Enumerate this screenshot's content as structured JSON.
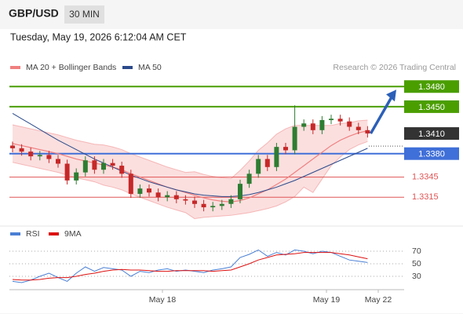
{
  "header": {
    "symbol": "GBP/USD",
    "timeframe": "30 MIN",
    "timestamp": "Tuesday, May 19, 2026 6:12:04 AM CET",
    "credit": "Research © 2026 Trading Central"
  },
  "chart_data": [
    {
      "type": "candlestick",
      "candles": [
        [
          1.3392,
          1.3398,
          1.3382,
          1.3388
        ],
        [
          1.3388,
          1.3394,
          1.3377,
          1.3383
        ],
        [
          1.3383,
          1.3389,
          1.337,
          1.3376
        ],
        [
          1.3376,
          1.3384,
          1.337,
          1.3378
        ],
        [
          1.3378,
          1.3384,
          1.3366,
          1.3372
        ],
        [
          1.3372,
          1.3378,
          1.3359,
          1.3365
        ],
        [
          1.3365,
          1.3371,
          1.3334,
          1.334
        ],
        [
          1.334,
          1.3358,
          1.3334,
          1.3352
        ],
        [
          1.3352,
          1.3376,
          1.3346,
          1.337
        ],
        [
          1.337,
          1.3376,
          1.335,
          1.3356
        ],
        [
          1.3356,
          1.3372,
          1.335,
          1.3366
        ],
        [
          1.3366,
          1.3372,
          1.3356,
          1.3362
        ],
        [
          1.3362,
          1.3368,
          1.3344,
          1.335
        ],
        [
          1.335,
          1.3356,
          1.3314,
          1.332
        ],
        [
          1.332,
          1.3334,
          1.3314,
          1.3328
        ],
        [
          1.3328,
          1.3334,
          1.3316,
          1.3322
        ],
        [
          1.3322,
          1.3328,
          1.3309,
          1.3315
        ],
        [
          1.3315,
          1.3324,
          1.3309,
          1.3318
        ],
        [
          1.3318,
          1.3324,
          1.3306,
          1.3312
        ],
        [
          1.3312,
          1.3318,
          1.3304,
          1.331
        ],
        [
          1.331,
          1.3316,
          1.3299,
          1.3305
        ],
        [
          1.3305,
          1.3311,
          1.3294,
          1.33
        ],
        [
          1.33,
          1.3308,
          1.3294,
          1.3302
        ],
        [
          1.3302,
          1.3311,
          1.3296,
          1.3305
        ],
        [
          1.3305,
          1.3318,
          1.3299,
          1.3312
        ],
        [
          1.3312,
          1.3341,
          1.3306,
          1.3335
        ],
        [
          1.3335,
          1.3356,
          1.3329,
          1.335
        ],
        [
          1.335,
          1.3378,
          1.3344,
          1.3372
        ],
        [
          1.3372,
          1.3378,
          1.3354,
          1.336
        ],
        [
          1.336,
          1.3396,
          1.3354,
          1.339
        ],
        [
          1.339,
          1.3396,
          1.3379,
          1.3385
        ],
        [
          1.3385,
          1.3452,
          1.3379,
          1.342
        ],
        [
          1.342,
          1.3431,
          1.3414,
          1.3425
        ],
        [
          1.3425,
          1.3431,
          1.3409,
          1.3415
        ],
        [
          1.3415,
          1.3436,
          1.3409,
          1.343
        ],
        [
          1.343,
          1.3438,
          1.3424,
          1.3432
        ],
        [
          1.3432,
          1.3438,
          1.3422,
          1.3428
        ],
        [
          1.3428,
          1.3434,
          1.3414,
          1.342
        ],
        [
          1.342,
          1.3426,
          1.3409,
          1.3415
        ],
        [
          1.3415,
          1.3421,
          1.3404,
          1.341
        ]
      ],
      "up_color": "#2e7d32",
      "down_color": "#c62828",
      "series": [
        {
          "name": "MA 20 + Bollinger Bands",
          "color": "#f08080",
          "values": [
            1.3395,
            1.3392,
            1.3389,
            1.3386,
            1.3383,
            1.338,
            1.3376,
            1.3372,
            1.3369,
            1.3366,
            1.3363,
            1.336,
            1.3356,
            1.335,
            1.3345,
            1.334,
            1.3335,
            1.333,
            1.3326,
            1.3322,
            1.3318,
            1.3314,
            1.3311,
            1.3309,
            1.3308,
            1.331,
            1.3314,
            1.332,
            1.3326,
            1.3334,
            1.3342,
            1.3352,
            1.3362,
            1.3372,
            1.3382,
            1.3392,
            1.34,
            1.3406,
            1.3411,
            1.3414
          ],
          "upper": [
            1.3423,
            1.342,
            1.3417,
            1.3414,
            1.3411,
            1.3408,
            1.3404,
            1.34,
            1.3397,
            1.3394,
            1.3393,
            1.339,
            1.3386,
            1.338,
            1.3375,
            1.337,
            1.3365,
            1.336,
            1.3356,
            1.3352,
            1.3353,
            1.3349,
            1.3346,
            1.3344,
            1.3343,
            1.3355,
            1.3369,
            1.3385,
            1.3396,
            1.3409,
            1.3417,
            1.3422,
            1.3422,
            1.3422,
            1.3422,
            1.3422,
            1.3425,
            1.3426,
            1.3429,
            1.343
          ],
          "lower": [
            1.3367,
            1.3364,
            1.3361,
            1.3358,
            1.3355,
            1.3352,
            1.3348,
            1.3344,
            1.3341,
            1.3338,
            1.3333,
            1.333,
            1.3326,
            1.332,
            1.3315,
            1.331,
            1.3305,
            1.33,
            1.3296,
            1.3292,
            1.3283,
            1.3285,
            1.3286,
            1.3287,
            1.3288,
            1.329,
            1.3292,
            1.3295,
            1.3298,
            1.3302,
            1.3308,
            1.3316,
            1.333,
            1.3322,
            1.3342,
            1.3362,
            1.3375,
            1.3386,
            1.3393,
            1.3398
          ]
        },
        {
          "name": "MA 50",
          "color": "#2b4a8b",
          "values": [
            1.344,
            1.3432,
            1.3424,
            1.3416,
            1.3408,
            1.34,
            1.3393,
            1.3386,
            1.3379,
            1.3372,
            1.3366,
            1.336,
            1.3354,
            1.3348,
            1.3343,
            1.3338,
            1.3334,
            1.333,
            1.3326,
            1.3323,
            1.332,
            1.3318,
            1.3317,
            1.3316,
            1.3316,
            1.3317,
            1.3319,
            1.3322,
            1.3326,
            1.333,
            1.3335,
            1.334,
            1.3346,
            1.3352,
            1.3358,
            1.3364,
            1.337,
            1.3376,
            1.3382,
            1.3388
          ]
        }
      ],
      "levels": [
        {
          "value": 1.348,
          "label": "1.3480",
          "color": "#4a9e00",
          "style": "box"
        },
        {
          "value": 1.345,
          "label": "1.3450",
          "color": "#4a9e00",
          "style": "box"
        },
        {
          "value": 1.341,
          "label": "1.3410",
          "color": "#333333",
          "style": "current"
        },
        {
          "value": 1.338,
          "label": "1.3380",
          "color": "#3f6fd8",
          "style": "box"
        },
        {
          "value": 1.3345,
          "label": "1.3345",
          "color": "#e05555",
          "style": "text"
        },
        {
          "value": 1.3315,
          "label": "1.3315",
          "color": "#e05555",
          "style": "text"
        }
      ],
      "ylim": [
        1.3279,
        1.3492
      ]
    },
    {
      "type": "line",
      "series": [
        {
          "name": "RSI",
          "color": "#4a7fd4",
          "values": [
            22,
            20,
            24,
            30,
            35,
            28,
            22,
            35,
            45,
            38,
            44,
            42,
            40,
            30,
            38,
            36,
            40,
            42,
            38,
            40,
            38,
            36,
            40,
            42,
            45,
            60,
            65,
            72,
            62,
            68,
            64,
            72,
            70,
            66,
            70,
            68,
            62,
            56,
            54,
            52
          ]
        },
        {
          "name": "9MA",
          "color": "#dd1111",
          "values": [
            25,
            24,
            24,
            25,
            27,
            28,
            28,
            30,
            33,
            35,
            38,
            40,
            41,
            40,
            40,
            39,
            38,
            38,
            39,
            39,
            39,
            39,
            38,
            39,
            40,
            45,
            50,
            56,
            60,
            64,
            65,
            66,
            68,
            68,
            68,
            68,
            66,
            64,
            61,
            58
          ]
        }
      ],
      "ylim": [
        10,
        80
      ],
      "yticks": [
        70,
        50,
        30
      ],
      "x_labels": [
        "May 18",
        "May 19",
        "May 22"
      ]
    }
  ]
}
